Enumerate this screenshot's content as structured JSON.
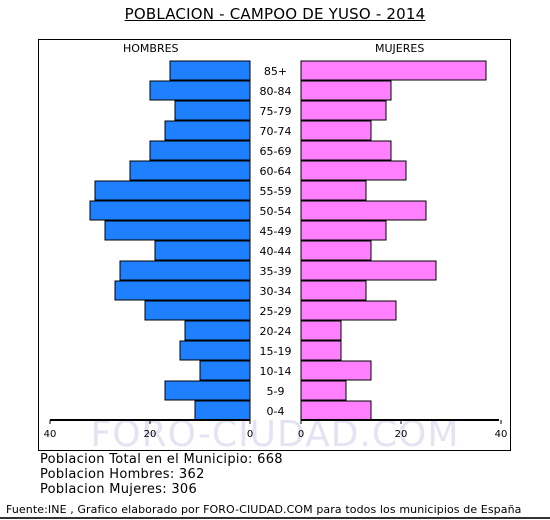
{
  "chart_data": {
    "type": "bar",
    "title": "POBLACION - CAMPOO DE YUSO - 2014",
    "left_label": "HOMBRES",
    "right_label": "MUJERES",
    "categories": [
      "85+",
      "80-84",
      "75-79",
      "70-74",
      "65-69",
      "60-64",
      "55-59",
      "50-54",
      "45-49",
      "40-44",
      "35-39",
      "30-34",
      "25-29",
      "20-24",
      "15-19",
      "10-14",
      "5-9",
      "0-4"
    ],
    "series": [
      {
        "name": "HOMBRES",
        "values": [
          16,
          20,
          15,
          17,
          20,
          24,
          31,
          32,
          29,
          19,
          26,
          27,
          21,
          13,
          14,
          10,
          17,
          11
        ]
      },
      {
        "name": "MUJERES",
        "values": [
          37,
          18,
          17,
          14,
          18,
          21,
          13,
          25,
          17,
          14,
          27,
          13,
          19,
          8,
          8,
          14,
          9,
          14
        ]
      }
    ],
    "xlim": [
      0,
      40
    ],
    "xticks_left": [
      "40",
      "20",
      "0"
    ],
    "xticks_right": [
      "0",
      "20",
      "40"
    ],
    "colors": {
      "hombres": "#1e80ff",
      "mujeres": "#ff80ff"
    }
  },
  "watermark": "FORO-CIUDAD.COM",
  "stats": {
    "total": "Poblacion Total en el Municipio: 668",
    "hombres": "Poblacion Hombres: 362",
    "mujeres": "Poblacion Mujeres: 306"
  },
  "footer": "Fuente:INE , Grafico elaborado por FORO-CIUDAD.COM para todos los municipios de España"
}
